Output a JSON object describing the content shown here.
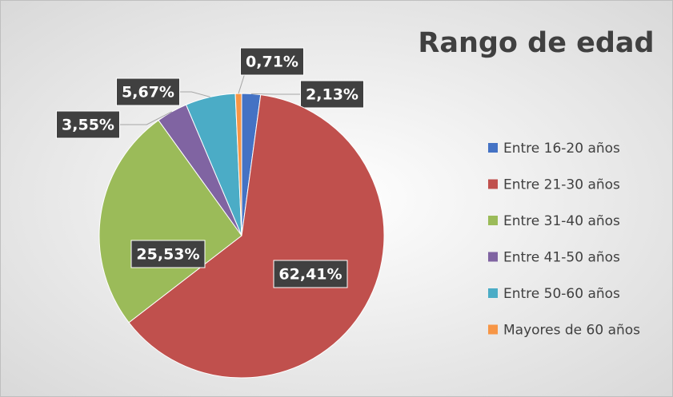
{
  "chart_data": {
    "type": "pie",
    "title": "Rango de edad",
    "categories": [
      "Entre 16-20 años",
      "Entre 21-30 años",
      "Entre 31-40 años",
      "Entre 41-50 años",
      "Entre 50-60 años",
      "Mayores de 60 años"
    ],
    "values": [
      2.13,
      62.41,
      25.53,
      3.55,
      5.67,
      0.71
    ],
    "value_labels": [
      "2,13%",
      "62,41%",
      "25,53%",
      "3,55%",
      "5,67%",
      "0,71%"
    ],
    "colors": [
      "#4472c4",
      "#c0504d",
      "#9bbb59",
      "#8064a2",
      "#4bacc6",
      "#f79646"
    ],
    "legend": "right"
  }
}
